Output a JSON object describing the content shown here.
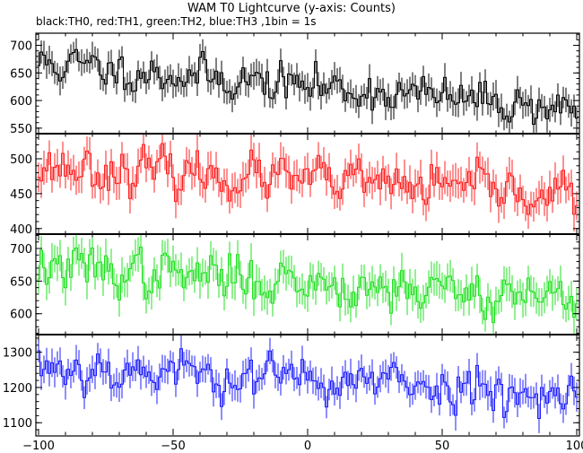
{
  "chart_data": {
    "type": "line",
    "title": "WAM T0 Lightcurve (y-axis: Counts)",
    "subtitle": "black:TH0, red:TH1, green:TH2, blue:TH3 ,1bin = 1s",
    "x_range": [
      -101,
      101
    ],
    "x_ticks": [
      -100,
      -50,
      0,
      50,
      100
    ],
    "x_minor_step": 10,
    "grid": false,
    "panels": [
      {
        "name": "TH0",
        "color": "#000000",
        "y_range": [
          540,
          722
        ],
        "y_ticks": [
          550,
          600,
          650,
          700
        ],
        "mean_start": 668,
        "mean_end": 585,
        "noise": 17,
        "error": 22,
        "peak_sigma": 48,
        "seed": 11
      },
      {
        "name": "TH1",
        "color": "#ff2020",
        "y_range": [
          392,
          536
        ],
        "y_ticks": [
          400,
          450,
          500
        ],
        "mean_start": 490,
        "mean_end": 448,
        "noise": 15,
        "error": 21,
        "peak_sigma": 48,
        "seed": 23
      },
      {
        "name": "TH2",
        "color": "#22e022",
        "y_range": [
          568,
          722
        ],
        "y_ticks": [
          600,
          650,
          700
        ],
        "mean_start": 672,
        "mean_end": 625,
        "noise": 17,
        "error": 23,
        "peak_sigma": 48,
        "seed": 37
      },
      {
        "name": "TH3",
        "color": "#1c1cff",
        "y_range": [
          1065,
          1350
        ],
        "y_ticks": [
          1100,
          1200,
          1300
        ],
        "mean_start": 1262,
        "mean_end": 1185,
        "noise": 30,
        "error": 36,
        "peak_sigma": 48,
        "seed": 53
      }
    ]
  }
}
